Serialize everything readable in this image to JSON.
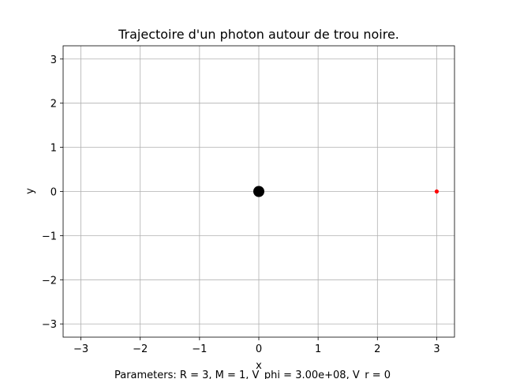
{
  "chart_data": {
    "type": "scatter",
    "title": "Trajectoire d'un photon autour de trou noire.",
    "xlabel": "x",
    "ylabel": "y",
    "xlim": [
      -3.3,
      3.3
    ],
    "ylim": [
      -3.3,
      3.3
    ],
    "xticks": [
      -3,
      -2,
      -1,
      0,
      1,
      2,
      3
    ],
    "yticks": [
      -3,
      -2,
      -1,
      0,
      1,
      2,
      3
    ],
    "xtick_labels": [
      "−3",
      "−2",
      "−1",
      "0",
      "1",
      "2",
      "3"
    ],
    "ytick_labels": [
      "−3",
      "−2",
      "−1",
      "0",
      "1",
      "2",
      "3"
    ],
    "grid": true,
    "points": [
      {
        "name": "black-hole",
        "x": 0,
        "y": 0,
        "color": "#000000",
        "size": "large"
      },
      {
        "name": "photon",
        "x": 3,
        "y": 0,
        "color": "#ff0000",
        "size": "small"
      }
    ],
    "caption": "Parameters: R = 3, M = 1, V_phi = 3.00e+08, V_r = 0"
  }
}
